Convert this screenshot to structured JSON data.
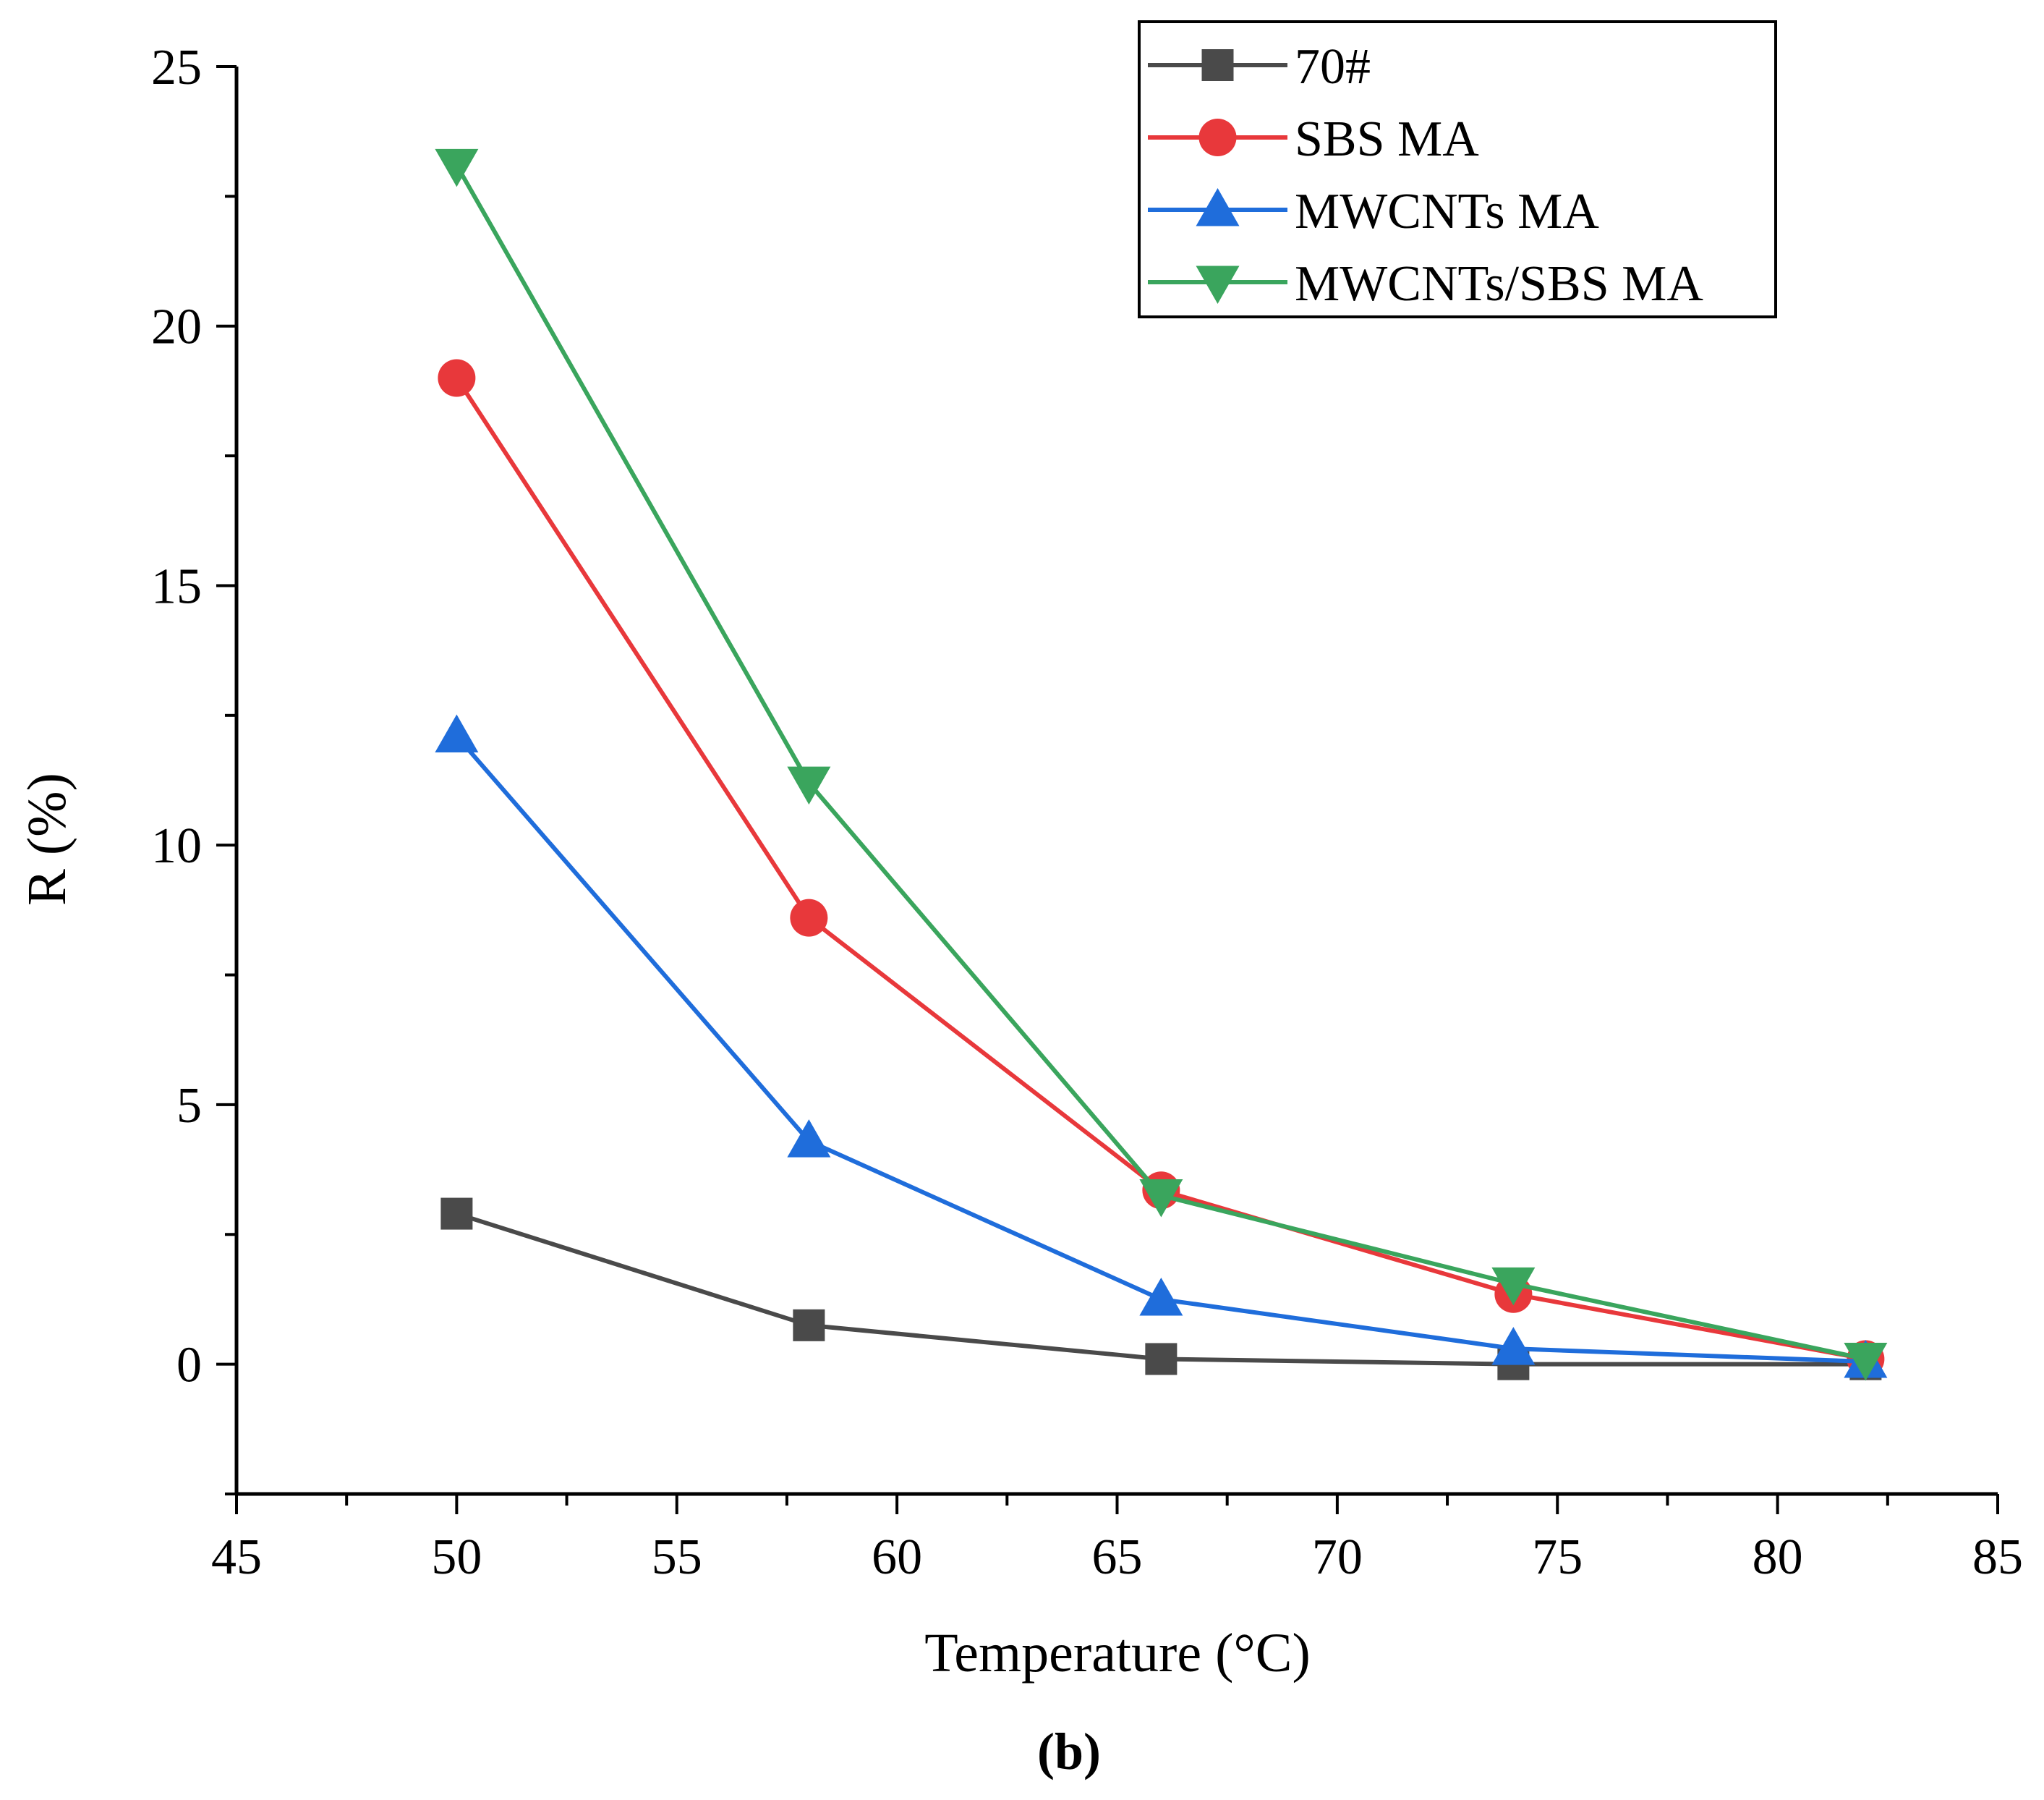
{
  "chart_data": {
    "type": "line",
    "title": "",
    "xlabel": "Temperature (°C)",
    "ylabel": "R (%)",
    "caption": "(b)",
    "xlim": [
      45,
      85
    ],
    "ylim": [
      -2.5,
      25
    ],
    "x_ticks": [
      45,
      50,
      55,
      60,
      65,
      70,
      75,
      80,
      85
    ],
    "y_ticks": [
      0,
      5,
      10,
      15,
      20,
      25
    ],
    "grid": false,
    "legend_position": "top-right",
    "x": [
      50,
      58,
      66,
      74,
      82
    ],
    "series": [
      {
        "name": "70#",
        "color": "#4a4a4a",
        "marker": "square",
        "values": [
          2.9,
          0.75,
          0.1,
          0.0,
          0.0
        ]
      },
      {
        "name": "SBS MA",
        "color": "#e8383b",
        "marker": "circle",
        "values": [
          19.0,
          8.6,
          3.35,
          1.35,
          0.1
        ]
      },
      {
        "name": "MWCNTs MA",
        "color": "#1f6ddb",
        "marker": "triangle-up",
        "values": [
          12.1,
          4.3,
          1.25,
          0.3,
          0.05
        ]
      },
      {
        "name": "MWCNTs/SBS MA",
        "color": "#3aa55d",
        "marker": "triangle-down",
        "values": [
          23.1,
          11.2,
          3.25,
          1.55,
          0.1
        ]
      }
    ]
  }
}
